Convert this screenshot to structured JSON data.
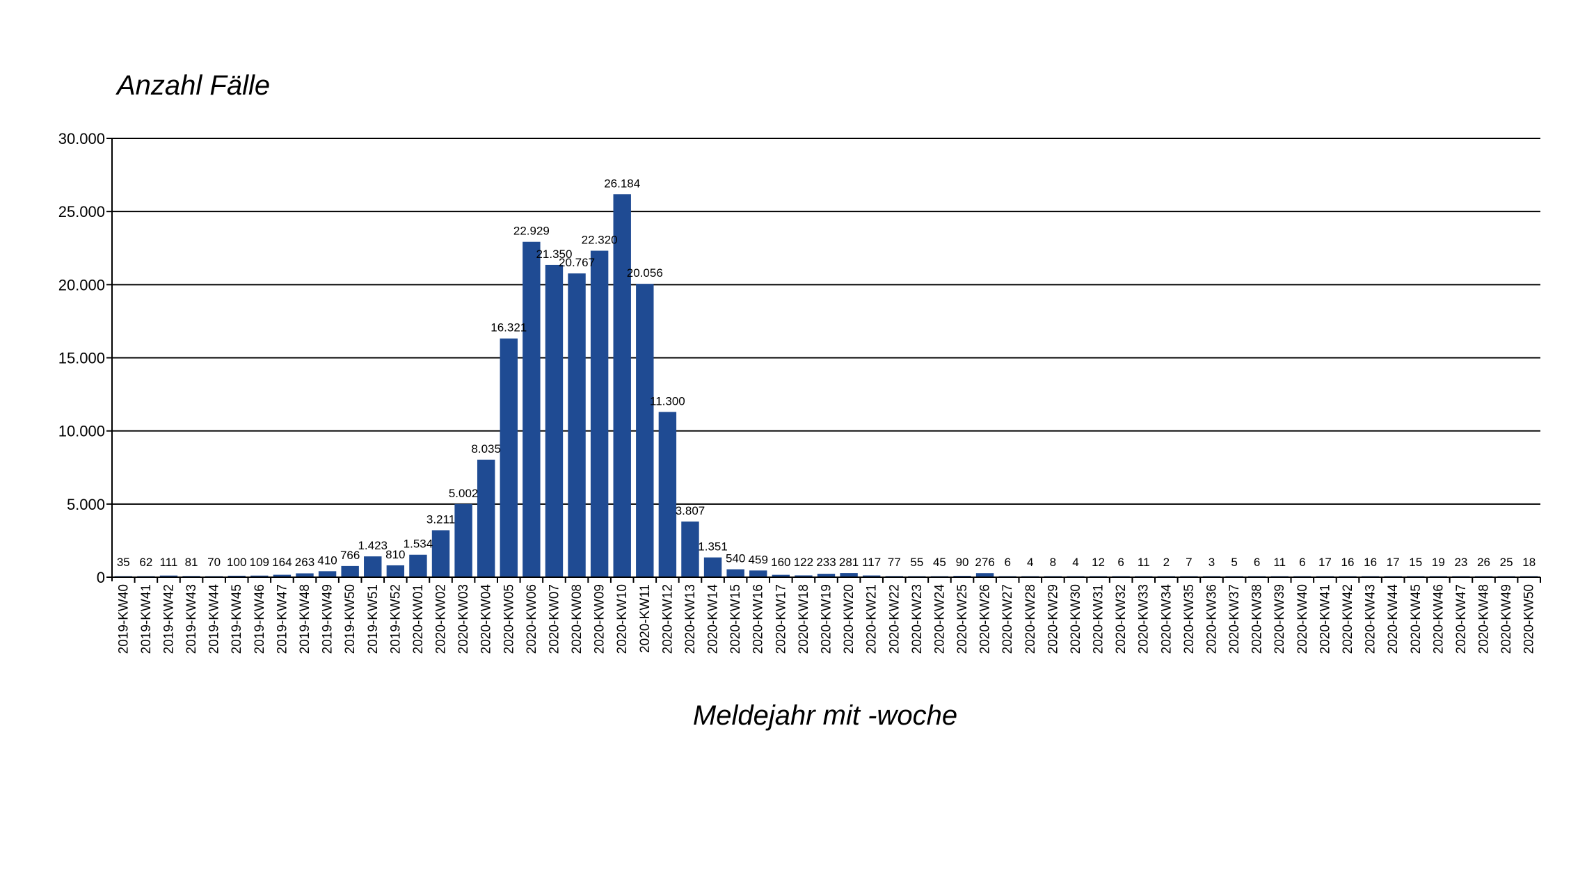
{
  "chart_data": {
    "type": "bar",
    "title": "",
    "ylabel": "Anzahl Fälle",
    "xlabel": "Meldejahr mit -woche",
    "ylim": [
      0,
      30000
    ],
    "yticks": [
      0,
      5000,
      10000,
      15000,
      20000,
      25000,
      30000
    ],
    "ytick_labels": [
      "0",
      "5.000",
      "10.000",
      "15.000",
      "20.000",
      "25.000",
      "30.000"
    ],
    "grid": "horizontal",
    "colors": {
      "bar": "#1f4b93",
      "grid": "#000000"
    },
    "categories": [
      "2019-KW40",
      "2019-KW41",
      "2019-KW42",
      "2019-KW43",
      "2019-KW44",
      "2019-KW45",
      "2019-KW46",
      "2019-KW47",
      "2019-KW48",
      "2019-KW49",
      "2019-KW50",
      "2019-KW51",
      "2019-KW52",
      "2020-KW01",
      "2020-KW02",
      "2020-KW03",
      "2020-KW04",
      "2020-KW05",
      "2020-KW06",
      "2020-KW07",
      "2020-KW08",
      "2020-KW09",
      "2020-KW10",
      "2020-KW11",
      "2020-KW12",
      "2020-KW13",
      "2020-KW14",
      "2020-KW15",
      "2020-KW16",
      "2020-KW17",
      "2020-KW18",
      "2020-KW19",
      "2020-KW20",
      "2020-KW21",
      "2020-KW22",
      "2020-KW23",
      "2020-KW24",
      "2020-KW25",
      "2020-KW26",
      "2020-KW27",
      "2020-KW28",
      "2020-KW29",
      "2020-KW30",
      "2020-KW31",
      "2020-KW32",
      "2020-KW33",
      "2020-KW34",
      "2020-KW35",
      "2020-KW36",
      "2020-KW37",
      "2020-KW38",
      "2020-KW39",
      "2020-KW40",
      "2020-KW41",
      "2020-KW42",
      "2020-KW43",
      "2020-KW44",
      "2020-KW45",
      "2020-KW46",
      "2020-KW47",
      "2020-KW48",
      "2020-KW49",
      "2020-KW50"
    ],
    "values": [
      35,
      62,
      111,
      81,
      70,
      100,
      109,
      164,
      263,
      410,
      766,
      1423,
      810,
      1534,
      3211,
      5002,
      8035,
      16321,
      22929,
      21350,
      20767,
      22320,
      26184,
      20056,
      11300,
      3807,
      1351,
      540,
      459,
      160,
      122,
      233,
      281,
      117,
      77,
      55,
      45,
      90,
      276,
      6,
      4,
      8,
      4,
      12,
      6,
      11,
      2,
      7,
      3,
      5,
      6,
      11,
      6,
      17,
      16,
      16,
      17,
      15,
      19,
      23,
      26,
      25,
      18
    ],
    "value_labels": [
      "35",
      "62",
      "111",
      "81",
      "70",
      "100",
      "109",
      "164",
      "263",
      "410",
      "766",
      "1.423",
      "810",
      "1.534",
      "3.211",
      "5.002",
      "8.035",
      "16.321",
      "22.929",
      "21.350",
      "20.767",
      "22.320",
      "26.184",
      "20.056",
      "11.300",
      "3.807",
      "1.351",
      "540",
      "459",
      "160",
      "122",
      "233",
      "281",
      "117",
      "77",
      "55",
      "45",
      "90",
      "276",
      "6",
      "4",
      "8",
      "4",
      "12",
      "6",
      "11",
      "2",
      "7",
      "3",
      "5",
      "6",
      "11",
      "6",
      "17",
      "16",
      "16",
      "17",
      "15",
      "19",
      "23",
      "26",
      "25",
      "18"
    ]
  }
}
